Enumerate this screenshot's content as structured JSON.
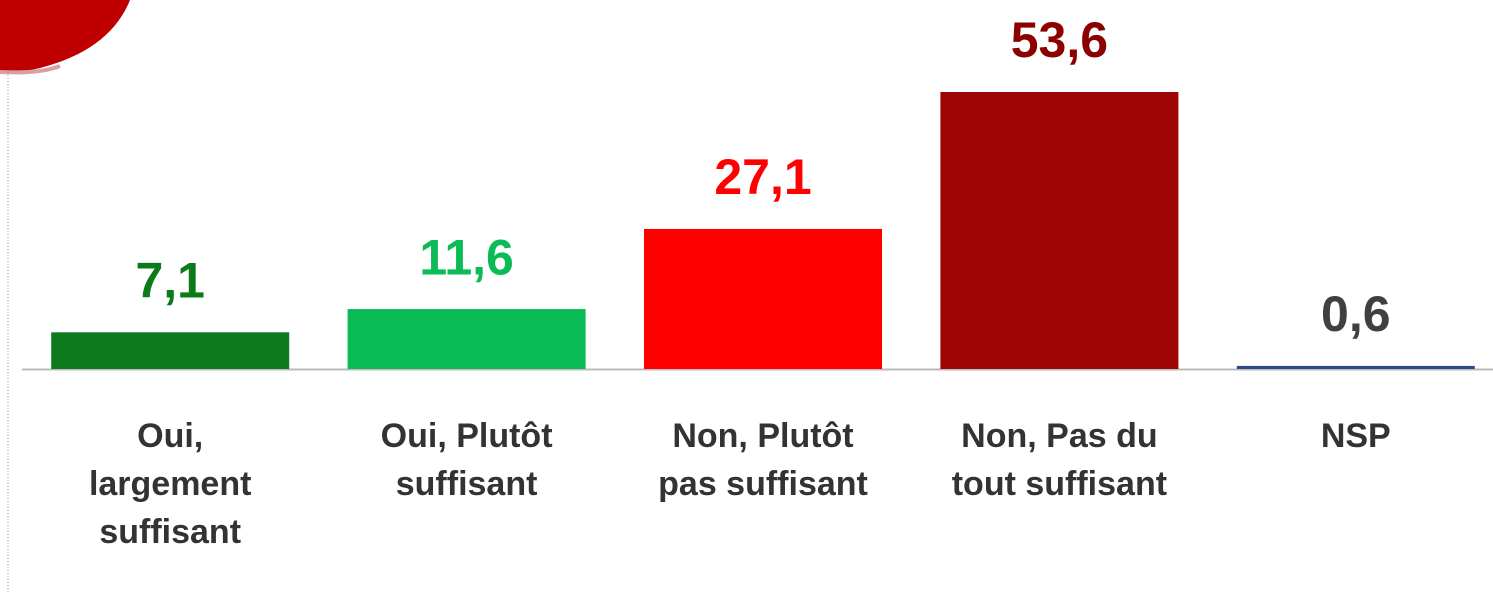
{
  "chart_data": {
    "type": "bar",
    "categories": [
      "Oui,\nlargement\nsuffisant",
      "Oui, Plutôt\nsuffisant",
      "Non, Plutôt\npas suffisant",
      "Non, Pas du\ntout suffisant",
      "NSP"
    ],
    "values": [
      7.1,
      11.6,
      27.1,
      53.6,
      0.6
    ],
    "value_labels": [
      "7,1",
      "11,6",
      "27,1",
      "53,6",
      "0,6"
    ],
    "colors": [
      "#0e7a1d",
      "#0abb55",
      "#ff0000",
      "#a00505",
      "#2f4a8a"
    ],
    "value_label_colors": [
      "#0b7a1a",
      "#0bbb55",
      "#ff0000",
      "#8b0000",
      "#404040"
    ]
  }
}
